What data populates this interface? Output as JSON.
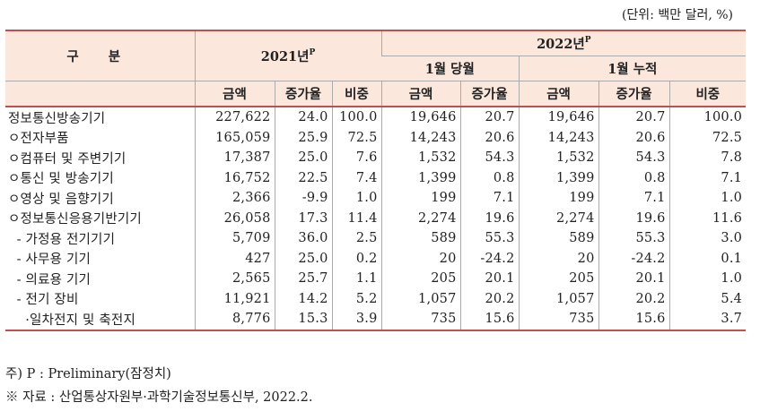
{
  "unit": "(단위: 백만 달러, %)",
  "header": {
    "category": "구 분",
    "y2021": "2021년",
    "y2022": "2022년",
    "prelim_mark": "P",
    "jan_current": "1월 당월",
    "jan_cumulative": "1월 누적",
    "amount": "금액",
    "growth": "증가율",
    "share": "비중"
  },
  "rows": [
    {
      "label": "정보통신방송기기",
      "a21": "227,622",
      "g21": "24.0",
      "s21": "100.0",
      "am": "19,646",
      "gm": "20.7",
      "ac": "19,646",
      "gc": "20.7",
      "sc": "100.0"
    },
    {
      "label": "ㅇ전자부품",
      "a21": "165,059",
      "g21": "25.9",
      "s21": "72.5",
      "am": "14,243",
      "gm": "20.6",
      "ac": "14,243",
      "gc": "20.6",
      "sc": "72.5"
    },
    {
      "label": "ㅇ컴퓨터 및 주변기기",
      "a21": "17,387",
      "g21": "25.0",
      "s21": "7.6",
      "am": "1,532",
      "gm": "54.3",
      "ac": "1,532",
      "gc": "54.3",
      "sc": "7.8"
    },
    {
      "label": "ㅇ통신 및 방송기기",
      "a21": "16,752",
      "g21": "22.5",
      "s21": "7.4",
      "am": "1,399",
      "gm": "0.8",
      "ac": "1,399",
      "gc": "0.8",
      "sc": "7.1"
    },
    {
      "label": "ㅇ영상 및 음향기기",
      "a21": "2,366",
      "g21": "-9.9",
      "s21": "1.0",
      "am": "199",
      "gm": "7.1",
      "ac": "199",
      "gc": "7.1",
      "sc": "1.0"
    },
    {
      "label": "ㅇ정보통신응용기반기기",
      "a21": "26,058",
      "g21": "17.3",
      "s21": "11.4",
      "am": "2,274",
      "gm": "19.6",
      "ac": "2,274",
      "gc": "19.6",
      "sc": "11.6"
    },
    {
      "label": "  - 가정용 전기기기",
      "a21": "5,709",
      "g21": "36.0",
      "s21": "2.5",
      "am": "589",
      "gm": "55.3",
      "ac": "589",
      "gc": "55.3",
      "sc": "3.0"
    },
    {
      "label": "  - 사무용 기기",
      "a21": "427",
      "g21": "25.0",
      "s21": "0.2",
      "am": "20",
      "gm": "-24.2",
      "ac": "20",
      "gc": "-24.2",
      "sc": "0.1"
    },
    {
      "label": "  - 의료용 기기",
      "a21": "2,565",
      "g21": "25.7",
      "s21": "1.1",
      "am": "205",
      "gm": "20.1",
      "ac": "205",
      "gc": "20.1",
      "sc": "1.0"
    },
    {
      "label": "  - 전기 장비",
      "a21": "11,921",
      "g21": "14.2",
      "s21": "5.2",
      "am": "1,057",
      "gm": "20.2",
      "ac": "1,057",
      "gc": "20.2",
      "sc": "5.4"
    },
    {
      "label": "    ·일차전지 및 축전지",
      "a21": "8,776",
      "g21": "15.3",
      "s21": "3.9",
      "am": "735",
      "gm": "15.6",
      "ac": "735",
      "gc": "15.6",
      "sc": "3.7"
    }
  ],
  "notes": {
    "n1": "주) P : Preliminary(잠정치)",
    "n2": "※ 자료 : 산업통상자원부·과학기술정보통신부, 2022.2."
  }
}
